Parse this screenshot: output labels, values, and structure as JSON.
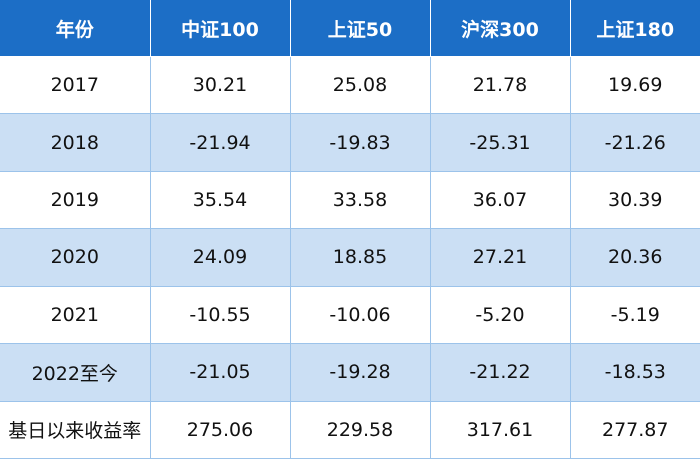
{
  "table": {
    "header": [
      "年份",
      "中证100",
      "上证50",
      "沪深300",
      "上证180"
    ],
    "rows": [
      [
        "2017",
        "30.21",
        "25.08",
        "21.78",
        "19.69"
      ],
      [
        "2018",
        "-21.94",
        "-19.83",
        "-25.31",
        "-21.26"
      ],
      [
        "2019",
        "35.54",
        "33.58",
        "36.07",
        "30.39"
      ],
      [
        "2020",
        "24.09",
        "18.85",
        "27.21",
        "20.36"
      ],
      [
        "2021",
        "-10.55",
        "-10.06",
        "-5.20",
        "-5.19"
      ],
      [
        "2022至今",
        "-21.05",
        "-19.28",
        "-21.22",
        "-18.53"
      ],
      [
        "基日以来收益率",
        "275.06",
        "229.58",
        "317.61",
        "277.87"
      ]
    ]
  }
}
